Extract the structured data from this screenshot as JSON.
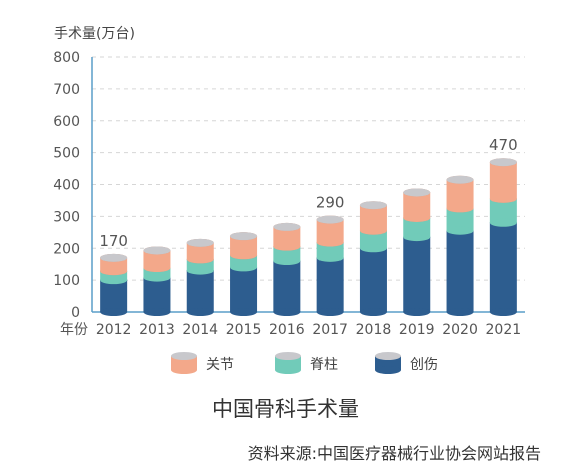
{
  "chart_data": {
    "type": "bar",
    "stacked": true,
    "bar_style": "cylinder",
    "title": "中国骨科手术量",
    "source": "资料来源:中国医疗器械行业协会网站报告",
    "ylabel": "手术量(万台)",
    "xlabel": "年份",
    "ylim": [
      0,
      800
    ],
    "yticks": [
      0,
      100,
      200,
      300,
      400,
      500,
      600,
      700,
      800
    ],
    "grid": true,
    "legend_position": "bottom",
    "categories": [
      "2012",
      "2013",
      "2014",
      "2015",
      "2016",
      "2017",
      "2018",
      "2019",
      "2020",
      "2021"
    ],
    "series": [
      {
        "name": "创伤",
        "color": "#2d5d8f",
        "values": [
          100,
          108,
          130,
          140,
          160,
          170,
          200,
          235,
          255,
          280
        ]
      },
      {
        "name": "脊柱",
        "color": "#71cbb9",
        "values": [
          28,
          30,
          35,
          38,
          45,
          48,
          55,
          60,
          70,
          75
        ]
      },
      {
        "name": "关节",
        "color": "#f3a88a",
        "values": [
          42,
          55,
          52,
          60,
          62,
          72,
          80,
          80,
          90,
          115
        ]
      }
    ],
    "annotations": [
      {
        "category": "2012",
        "text": "170"
      },
      {
        "category": "2017",
        "text": "290"
      },
      {
        "category": "2021",
        "text": "470"
      }
    ]
  }
}
